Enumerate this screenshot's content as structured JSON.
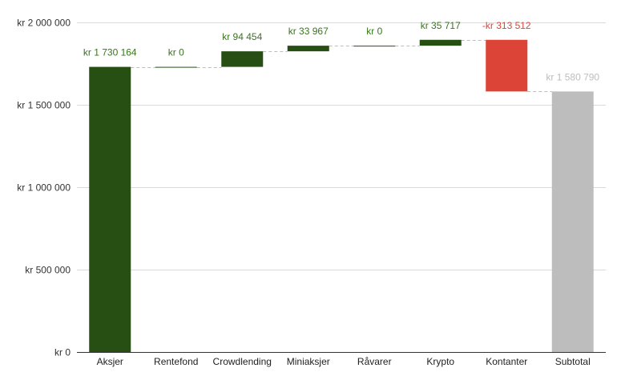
{
  "chart_data": {
    "type": "bar",
    "subtype": "waterfall",
    "title": "",
    "xlabel": "",
    "ylabel": "",
    "categories": [
      "Aksjer",
      "Rentefond",
      "Crowdlending",
      "Miniaksjer",
      "Råvarer",
      "Krypto",
      "Kontanter",
      "Subtotal"
    ],
    "values": [
      1730164,
      0,
      94454,
      33967,
      0,
      35717,
      -313512,
      1580790
    ],
    "value_labels": [
      "kr 1 730 164",
      "kr   0",
      "kr  94 454",
      "kr  33 967",
      "kr   0",
      "kr  35 717",
      "-kr  313 512",
      "kr 1 580 790"
    ],
    "ylim": [
      0,
      2000000
    ],
    "y_ticks": [
      0,
      500000,
      1000000,
      1500000,
      2000000
    ],
    "y_tick_labels": [
      "kr   0",
      "kr  500 000",
      "kr 1 000 000",
      "kr 1 500 000",
      "kr 2 000 000"
    ],
    "grid": true,
    "legend": "none",
    "colors": {
      "increase": "#274e13",
      "decrease": "#db4437",
      "total": "#bdbdbd",
      "increase_label": "#38761d",
      "decrease_label": "#db4437",
      "total_label": "#bdbdbd"
    }
  }
}
